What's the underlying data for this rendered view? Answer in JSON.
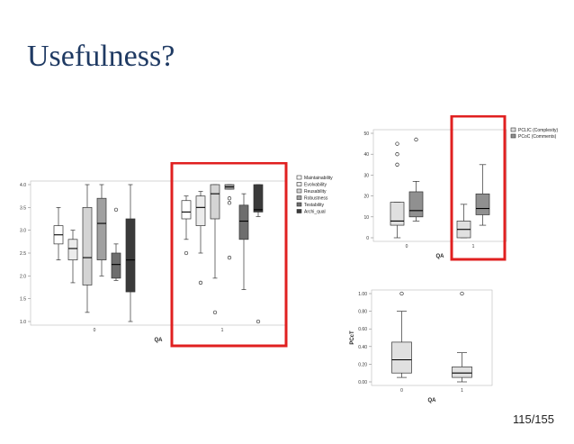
{
  "slide": {
    "title": "Usefulness?",
    "page": "115/155"
  },
  "colors": {
    "title": "#1f3a63",
    "highlight": "#e02020"
  },
  "chart_data": [
    {
      "type": "boxplot",
      "xlabel": "QA",
      "ylabel": "",
      "ylim": [
        1.0,
        4.0
      ],
      "yticks": [
        "1.0",
        "1.5",
        "2.0",
        "2.5",
        "3.0",
        "3.5",
        "4.0"
      ],
      "categories": [
        "0",
        "1"
      ],
      "legend": [
        "Maintainability",
        "Evolvability",
        "Reusability",
        "Robustness",
        "Testability",
        "Archi_qual"
      ],
      "legend_position": "right",
      "series": [
        {
          "name": "Maintainability",
          "color": "#ffffff",
          "boxes": [
            {
              "min": 2.35,
              "q1": 2.7,
              "median": 2.9,
              "q3": 3.1,
              "max": 3.5,
              "outliers": []
            },
            {
              "min": 2.8,
              "q1": 3.25,
              "median": 3.4,
              "q3": 3.65,
              "max": 3.75,
              "outliers": [
                2.5
              ]
            }
          ]
        },
        {
          "name": "Evolvability",
          "color": "#ececec",
          "boxes": [
            {
              "min": 1.85,
              "q1": 2.35,
              "median": 2.6,
              "q3": 2.8,
              "max": 3.0,
              "outliers": []
            },
            {
              "min": 2.5,
              "q1": 3.1,
              "median": 3.5,
              "q3": 3.75,
              "max": 3.85,
              "outliers": [
                1.85
              ]
            }
          ]
        },
        {
          "name": "Reusability",
          "color": "#d4d4d4",
          "boxes": [
            {
              "min": 1.2,
              "q1": 1.8,
              "median": 2.4,
              "q3": 3.5,
              "max": 4.0,
              "outliers": []
            },
            {
              "min": 1.95,
              "q1": 3.25,
              "median": 3.8,
              "q3": 4.0,
              "max": 4.0,
              "outliers": [
                1.2
              ]
            }
          ]
        },
        {
          "name": "Robustness",
          "color": "#a0a0a0",
          "boxes": [
            {
              "min": 2.0,
              "q1": 2.35,
              "median": 3.15,
              "q3": 3.7,
              "max": 4.0,
              "outliers": []
            },
            {
              "min": 3.9,
              "q1": 3.9,
              "median": 3.95,
              "q3": 4.0,
              "max": 4.0,
              "outliers": [
                3.7,
                3.6,
                2.4
              ]
            }
          ]
        },
        {
          "name": "Testability",
          "color": "#6e6e6e",
          "boxes": [
            {
              "min": 1.9,
              "q1": 1.95,
              "median": 2.25,
              "q3": 2.5,
              "max": 2.7,
              "outliers": [
                3.45
              ]
            },
            {
              "min": 1.7,
              "q1": 2.8,
              "median": 3.2,
              "q3": 3.55,
              "max": 3.8,
              "outliers": []
            }
          ]
        },
        {
          "name": "Archi_qual",
          "color": "#3a3a3a",
          "boxes": [
            {
              "min": 1.0,
              "q1": 1.65,
              "median": 2.35,
              "q3": 3.25,
              "max": 4.0,
              "outliers": []
            },
            {
              "min": 3.3,
              "q1": 3.4,
              "median": 3.45,
              "q3": 4.0,
              "max": 4.0,
              "outliers": [
                1.0
              ]
            }
          ]
        }
      ]
    },
    {
      "type": "boxplot",
      "xlabel": "QA",
      "ylabel": "",
      "ylim": [
        0,
        50
      ],
      "yticks": [
        "0",
        "10",
        "20",
        "30",
        "40",
        "50"
      ],
      "categories": [
        "0",
        "1"
      ],
      "legend": [
        "PCLIC (Complexity)",
        "PCoC (Comments)"
      ],
      "legend_position": "top-right",
      "series": [
        {
          "name": "PCLIC (Complexity)",
          "color": "#e0e0e0",
          "boxes": [
            {
              "min": 0,
              "q1": 6,
              "median": 8,
              "q3": 17,
              "max": 17,
              "outliers": [
                45,
                40,
                35
              ]
            },
            {
              "min": 0,
              "q1": 0,
              "median": 4,
              "q3": 8,
              "max": 16,
              "outliers": []
            }
          ]
        },
        {
          "name": "PCoC (Comments)",
          "color": "#909090",
          "boxes": [
            {
              "min": 8,
              "q1": 10,
              "median": 13,
              "q3": 22,
              "max": 27,
              "outliers": [
                47
              ]
            },
            {
              "min": 6,
              "q1": 11,
              "median": 14,
              "q3": 21,
              "max": 35,
              "outliers": []
            }
          ]
        }
      ]
    },
    {
      "type": "boxplot",
      "xlabel": "QA",
      "ylabel": "PCcT",
      "ylim": [
        0.0,
        1.0
      ],
      "yticks": [
        "0.00",
        "0.20",
        "0.40",
        "0.60",
        "0.80",
        "1.00"
      ],
      "categories": [
        "0",
        "1"
      ],
      "series": [
        {
          "name": "",
          "color": "#e0e0e0",
          "boxes": [
            {
              "min": 0.05,
              "q1": 0.1,
              "median": 0.25,
              "q3": 0.45,
              "max": 0.8,
              "outliers": [
                1.0
              ]
            },
            {
              "min": 0.0,
              "q1": 0.05,
              "median": 0.1,
              "q3": 0.17,
              "max": 0.33,
              "outliers": [
                1.0
              ]
            }
          ]
        }
      ]
    }
  ]
}
